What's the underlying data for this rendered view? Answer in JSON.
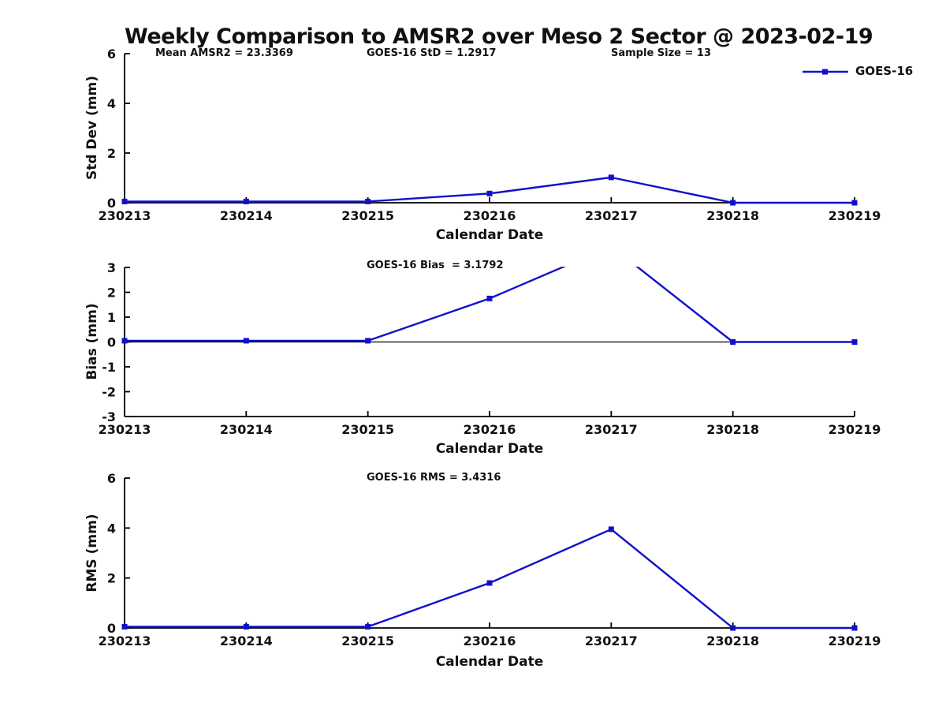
{
  "title": "Weekly Comparison to AMSR2 over Meso 2 Sector @ 2023-02-19",
  "chart_data": [
    {
      "type": "line",
      "name": "std-dev",
      "annotations": [
        "Mean AMSR2 = 23.3369",
        "GOES-16 StD = 1.2917",
        "Sample Size = 13"
      ],
      "categories": [
        "230213",
        "230214",
        "230215",
        "230216",
        "230217",
        "230218",
        "230219"
      ],
      "series": [
        {
          "name": "GOES-16",
          "color": "#1010CC",
          "marker": "square",
          "values": [
            0.05,
            0.05,
            0.05,
            0.37,
            1.02,
            0.0,
            0.0
          ]
        }
      ],
      "xlabel": "Calendar Date",
      "ylabel": "Std Dev (mm)",
      "ylim": [
        0,
        6
      ],
      "yticks": [
        0,
        2,
        4,
        6
      ],
      "grid": false,
      "legend": {
        "label": "GOES-16",
        "position": "top-right"
      }
    },
    {
      "type": "line",
      "name": "bias",
      "annotations": [
        "GOES-16 Bias  = 3.1792"
      ],
      "categories": [
        "230213",
        "230214",
        "230215",
        "230216",
        "230217",
        "230218",
        "230219"
      ],
      "series": [
        {
          "name": "GOES-16",
          "color": "#1010CC",
          "marker": "square",
          "values": [
            0.05,
            0.05,
            0.05,
            1.75,
            3.85,
            0.0,
            0.0
          ]
        }
      ],
      "xlabel": "Calendar Date",
      "ylabel": "Bias (mm)",
      "ylim": [
        -3,
        3
      ],
      "yticks": [
        -3,
        -2,
        -1,
        0,
        1,
        2,
        3
      ],
      "zero_line": true,
      "clipped_peak": "value at 230217 exceeds +3 axis limit and is clipped",
      "grid": false
    },
    {
      "type": "line",
      "name": "rms",
      "annotations": [
        "GOES-16 RMS = 3.4316"
      ],
      "categories": [
        "230213",
        "230214",
        "230215",
        "230216",
        "230217",
        "230218",
        "230219"
      ],
      "series": [
        {
          "name": "GOES-16",
          "color": "#1010CC",
          "marker": "square",
          "values": [
            0.05,
            0.05,
            0.05,
            1.8,
            3.95,
            0.0,
            0.0
          ]
        }
      ],
      "xlabel": "Calendar Date",
      "ylabel": "RMS (mm)",
      "ylim": [
        0,
        6
      ],
      "yticks": [
        0,
        2,
        4,
        6
      ],
      "grid": false
    }
  ]
}
